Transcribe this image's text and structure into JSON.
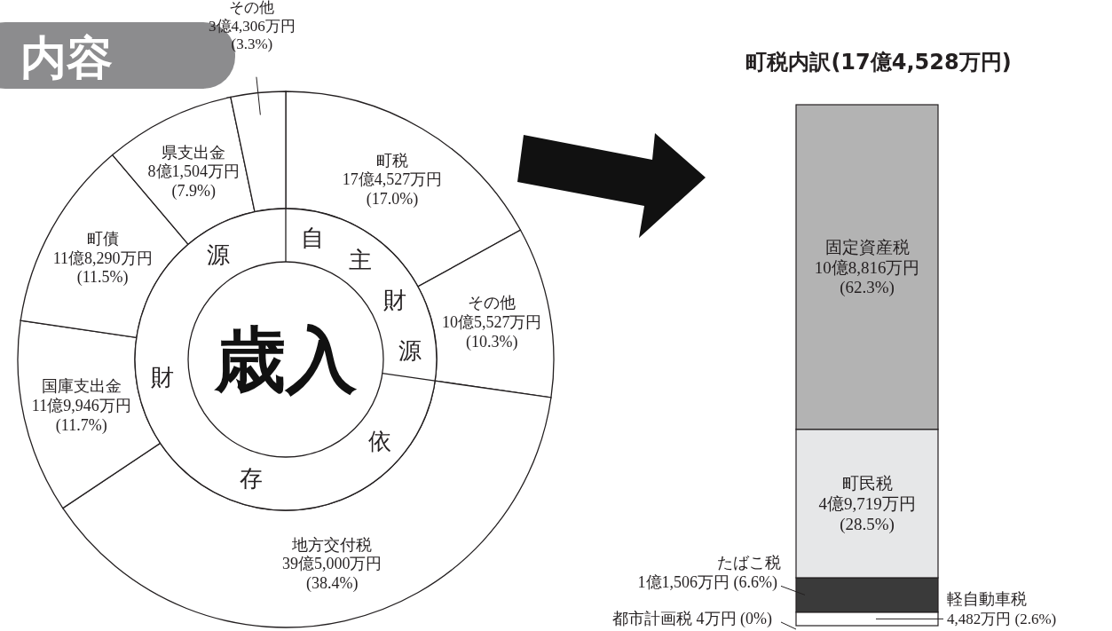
{
  "chart_data": [
    {
      "type": "donut",
      "title": "内容",
      "subtitle": "歳入",
      "categories": [
        "町税",
        "その他",
        "地方交付税",
        "国庫支出金",
        "町債",
        "県支出金",
        "その他"
      ],
      "values": [
        17.0,
        10.3,
        38.4,
        11.7,
        11.5,
        7.9,
        3.3
      ],
      "value_labels": [
        "17億4,527万円 (17.0%)",
        "10億5,527万円 (10.3%)",
        "39億5,000万円 (38.4%)",
        "11億9,946万円 (11.7%)",
        "11億8,290万円 (11.5%)",
        "8億1,504万円 (7.9%)",
        "3億4,306万円 (3.3%)"
      ],
      "colors": [
        "#ffffff",
        "#ffffff",
        "#ffffff",
        "#ffffff",
        "#ffffff",
        "#ffffff",
        "#ffffff"
      ],
      "annotations": [
        "自",
        "主",
        "財",
        "源",
        "依",
        "存",
        "財",
        "源"
      ]
    },
    {
      "type": "bar",
      "stacked": true,
      "title": "町税内訳(17億4,528万円)",
      "categories": [
        null
      ],
      "series": [
        {
          "name": "都市計画税",
          "color": "#ffffff",
          "values": [
            0
          ],
          "value_labels": [
            "4万円 (0%)"
          ]
        },
        {
          "name": "軽自動車税",
          "color": "#ffffff",
          "values": [
            2.6
          ],
          "value_labels": [
            "4,482万円 (2.6%)"
          ]
        },
        {
          "name": "たばこ税",
          "color": "#3a3a3a",
          "values": [
            6.6
          ],
          "value_labels": [
            "1億1,506万円 (6.6%)"
          ]
        },
        {
          "name": "町民税",
          "color": "#e6e7e8",
          "values": [
            28.5
          ],
          "value_labels": [
            "4億9,719万円 (28.5%)"
          ]
        },
        {
          "name": "固定資産税",
          "color": "#b3b3b3",
          "values": [
            62.3
          ],
          "value_labels": [
            "10億8,816万円 (62.3%)"
          ]
        }
      ]
    }
  ]
}
